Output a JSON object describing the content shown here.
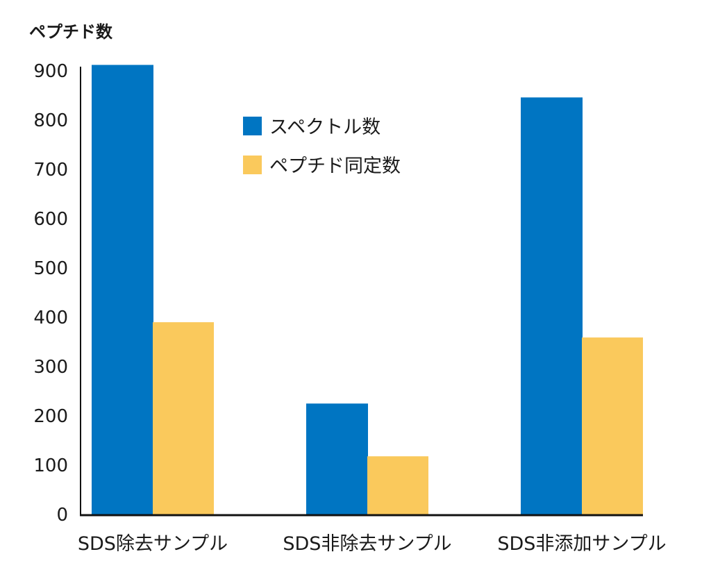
{
  "chart_data": {
    "type": "bar",
    "title": "",
    "ylabel": "ペプチド数",
    "xlabel": "",
    "ylim": [
      0,
      900
    ],
    "yticks": [
      0,
      100,
      200,
      300,
      400,
      500,
      600,
      700,
      800,
      900
    ],
    "grid": false,
    "legend_position": "top-center",
    "categories": [
      "SDS除去サンプル",
      "SDS非除去サンプル",
      "SDS非添加サンプル"
    ],
    "series": [
      {
        "name": "スペクトル数",
        "color": "#0075c2",
        "values": [
          912,
          225,
          846
        ]
      },
      {
        "name": "ペプチド同定数",
        "color": "#fac95c",
        "values": [
          390,
          118,
          359
        ]
      }
    ]
  }
}
